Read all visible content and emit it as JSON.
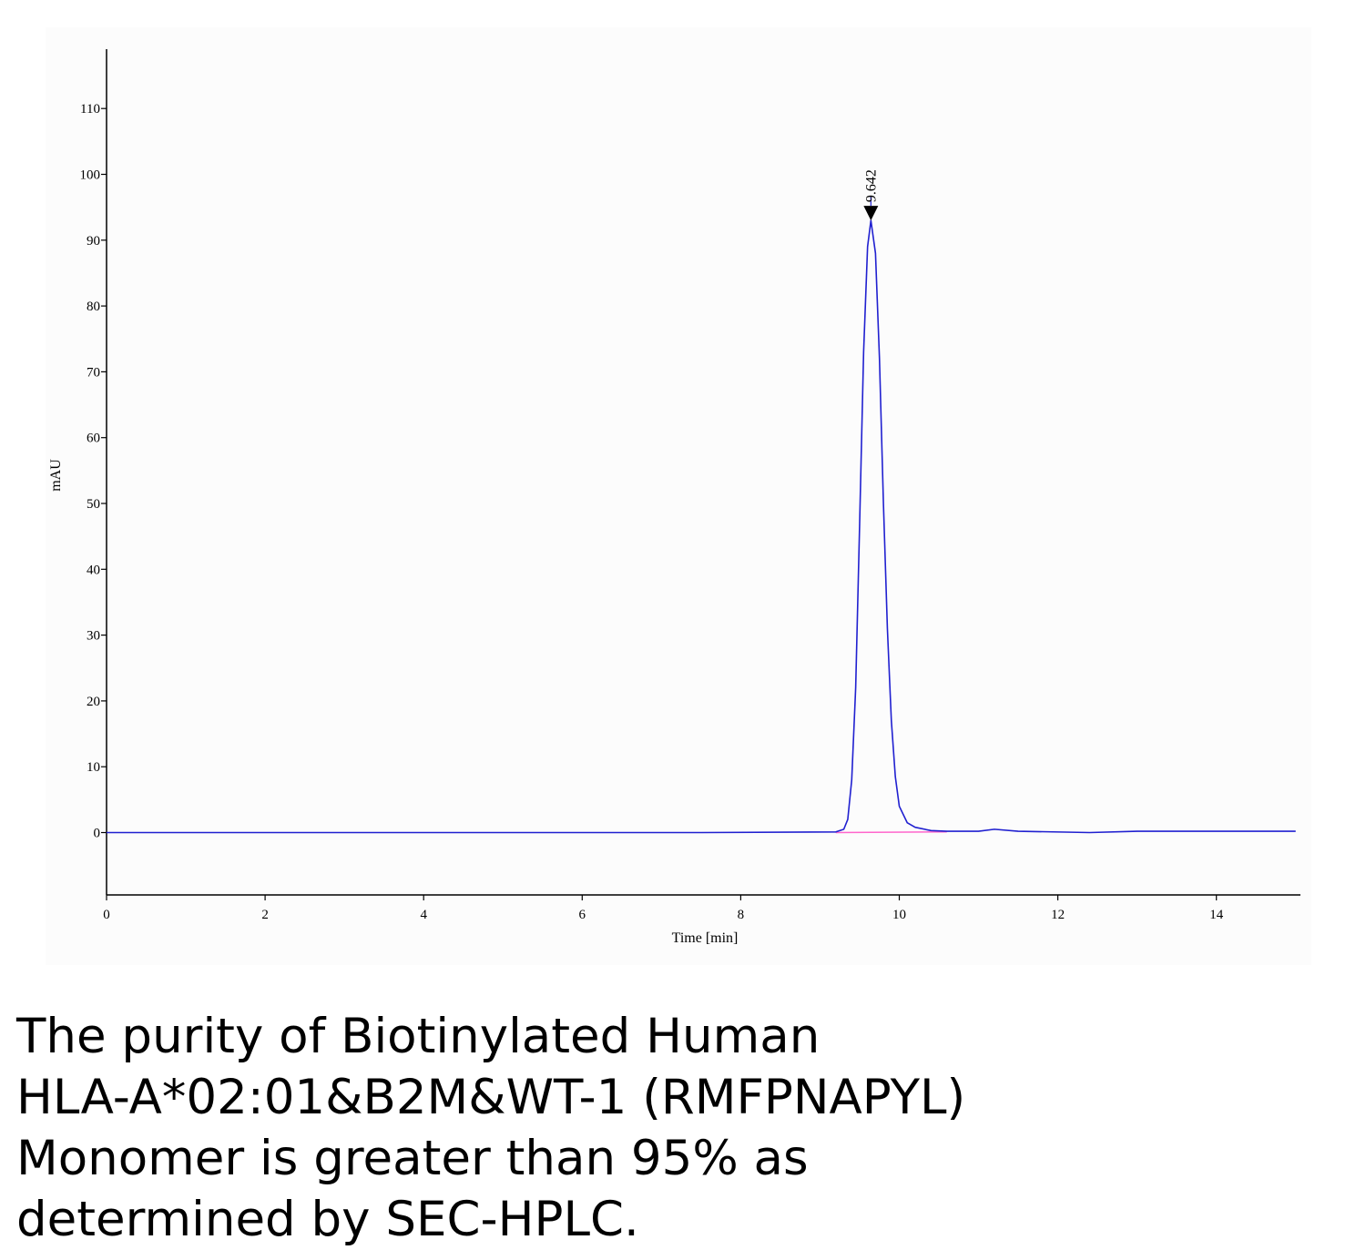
{
  "chart_data": {
    "type": "line",
    "title": "",
    "xlabel": "Time [min]",
    "ylabel": "mAU",
    "xlim": [
      0,
      15
    ],
    "ylim": [
      -9,
      119
    ],
    "x_ticks": [
      0,
      2,
      4,
      6,
      8,
      10,
      12,
      14
    ],
    "y_ticks": [
      0,
      10,
      20,
      30,
      40,
      50,
      60,
      70,
      80,
      90,
      100,
      110
    ],
    "grid": false,
    "series": [
      {
        "color": "#2020d0",
        "x": [
          0,
          7.5,
          9.2,
          9.3,
          9.35,
          9.4,
          9.45,
          9.5,
          9.55,
          9.6,
          9.642,
          9.7,
          9.75,
          9.8,
          9.85,
          9.9,
          9.95,
          10.0,
          10.1,
          10.2,
          10.4,
          10.6,
          11.0,
          11.2,
          11.5,
          12.4,
          13.0,
          15.0
        ],
        "y": [
          0,
          0,
          0.1,
          0.5,
          2.0,
          8.0,
          22.0,
          47.0,
          73.0,
          89.0,
          93.0,
          88.0,
          72.0,
          50.0,
          31.0,
          17.0,
          8.5,
          4.0,
          1.5,
          0.8,
          0.3,
          0.2,
          0.2,
          0.5,
          0.2,
          0.0,
          0.2,
          0.2
        ]
      },
      {
        "color": "#ff66cc",
        "x": [
          9.2,
          10.6
        ],
        "y": [
          0,
          0.1
        ]
      }
    ],
    "annotations": [
      {
        "x": 9.642,
        "y": 93.0,
        "label": "9.642"
      }
    ]
  },
  "caption": {
    "lines": [
      "The purity of Biotinylated Human",
      "HLA-A*02:01&B2M&WT-1 (RMFPNAPYL)",
      "Monomer is greater than 95% as",
      "determined by SEC-HPLC."
    ]
  }
}
